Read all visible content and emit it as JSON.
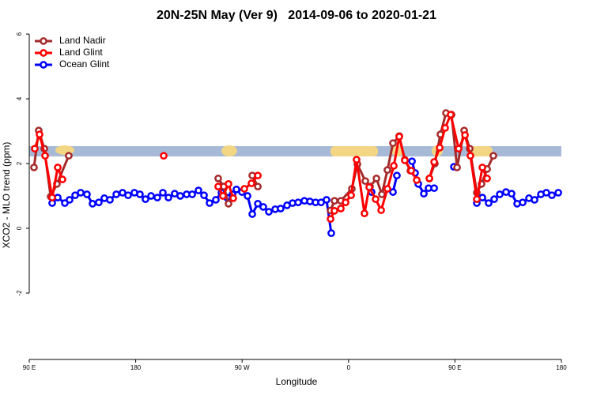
{
  "chart_data": {
    "type": "line",
    "title": "20N-25N May (Ver 9)   2014-09-06 to 2020-01-21",
    "x_label": "Longitude",
    "y_label": "XCO2 - MLO trend (ppm)",
    "xlim": [
      90,
      540
    ],
    "xticks": [
      {
        "value": 90,
        "label": "90 E"
      },
      180,
      {
        "value": 270,
        "label": "90 W"
      },
      {
        "value": 360,
        "label": "0"
      },
      {
        "value": 450,
        "label": "90 E"
      },
      {
        "value": 540,
        "label": "180"
      }
    ],
    "ylim": [
      -4.05,
      6.1
    ],
    "yticks": [
      -2,
      0,
      2,
      4,
      6
    ],
    "legend": "top-left",
    "series": [
      {
        "name": "Land Nadir",
        "color": "#a52a2a",
        "x": [
          94.0,
          98.0,
          102.7,
          108.1,
          113.4,
          123.4,
          null,
          249.8,
          254.5,
          258.5,
          null,
          278.6,
          283.3,
          null,
          344.8,
          348.1,
          353.5,
          362.8,
          367.5,
          374.2,
          378.2,
          383.6,
          388.2,
          392.9,
          397.6,
          402.9,
          407.6,
          412.3,
          null,
          428.4,
          433.0,
          437.7,
          442.4,
          447.1,
          451.8,
          457.8,
          462.5,
          468.5,
          472.5,
          477.2,
          482.5
        ],
        "values": [
          1.88,
          3.02,
          2.46,
          0.98,
          1.37,
          2.24,
          null,
          1.54,
          1.29,
          0.76,
          null,
          1.63,
          1.29,
          null,
          0.55,
          0.85,
          0.85,
          1.22,
          1.98,
          1.46,
          1.29,
          1.54,
          1.05,
          1.8,
          2.63,
          2.85,
          2.12,
          1.78,
          null,
          1.54,
          2.0,
          2.9,
          3.56,
          3.51,
          1.88,
          3.02,
          2.46,
          1.1,
          1.37,
          1.83,
          2.24
        ]
      },
      {
        "name": "Land Glint",
        "color": "#ff0000",
        "x": [
          94.7,
          98.7,
          103.4,
          109.4,
          114.1,
          118.1,
          null,
          203.7,
          null,
          249.8,
          253.8,
          258.5,
          262.5,
          null,
          271.9,
          277.9,
          283.3,
          null,
          344.8,
          348.1,
          353.5,
          357.5,
          362.2,
          366.8,
          373.5,
          377.5,
          382.9,
          387.6,
          392.9,
          398.3,
          402.9,
          407.6,
          413.0,
          417.7,
          null,
          428.4,
          432.4,
          437.1,
          441.7,
          446.4,
          453.1,
          458.5,
          463.1,
          468.5,
          473.2,
          477.2
        ],
        "values": [
          2.46,
          2.9,
          2.24,
          0.95,
          1.88,
          1.51,
          null,
          2.24,
          null,
          1.29,
          1.0,
          1.37,
          0.93,
          null,
          1.22,
          1.39,
          1.63,
          null,
          0.29,
          0.54,
          0.61,
          0.8,
          1.02,
          2.12,
          0.46,
          1.27,
          0.9,
          0.56,
          1.22,
          1.93,
          2.83,
          2.1,
          1.78,
          1.49,
          null,
          1.54,
          2.05,
          2.49,
          3.1,
          3.51,
          2.46,
          2.88,
          2.24,
          0.9,
          1.88,
          1.54
        ]
      },
      {
        "name": "Ocean Glint",
        "color": "#0000ff",
        "x": [
          109.4,
          114.1,
          120.1,
          124.1,
          128.8,
          133.5,
          138.8,
          143.5,
          148.8,
          153.5,
          158.2,
          163.6,
          168.9,
          173.6,
          178.9,
          183.6,
          188.3,
          193.0,
          198.3,
          203.0,
          207.7,
          213.0,
          217.7,
          223.1,
          227.8,
          233.1,
          237.8,
          242.5,
          247.8,
          252.5,
          257.2,
          261.9,
          265.2,
          269.9,
          274.6,
          278.6,
          283.3,
          287.9,
          292.6,
          298.0,
          302.6,
          308.0,
          312.7,
          317.4,
          322.7,
          327.4,
          332.1,
          336.8,
          341.4,
          345.4,
          null,
          379.5,
          null,
          397.6,
          400.9,
          null,
          413.7,
          416.3,
          419.0,
          423.7,
          427.7,
          432.4,
          null,
          449.1,
          null,
          468.5,
          473.2,
          478.5,
          483.2,
          487.9,
          493.2,
          497.9,
          502.6,
          507.3,
          512.6,
          517.3,
          522.7,
          527.3,
          532.0,
          537.4
        ],
        "values": [
          0.78,
          0.95,
          0.78,
          0.88,
          1.02,
          1.1,
          1.05,
          0.76,
          0.8,
          0.93,
          0.88,
          1.05,
          1.1,
          1.02,
          1.1,
          1.05,
          0.9,
          1.0,
          0.95,
          1.1,
          0.95,
          1.07,
          1.0,
          1.05,
          1.05,
          1.17,
          1.02,
          0.78,
          0.88,
          1.1,
          0.95,
          1.05,
          1.2,
          1.12,
          1.0,
          0.44,
          0.76,
          0.66,
          0.51,
          0.59,
          0.61,
          0.71,
          0.78,
          0.8,
          0.85,
          0.83,
          0.8,
          0.8,
          0.88,
          -0.15,
          null,
          1.12,
          null,
          1.12,
          1.63,
          null,
          2.07,
          1.71,
          1.37,
          1.07,
          1.24,
          1.24,
          null,
          1.9,
          null,
          0.78,
          0.95,
          0.78,
          0.9,
          1.05,
          1.12,
          1.07,
          0.76,
          0.8,
          0.93,
          0.88,
          1.05,
          1.1,
          1.02,
          1.1
        ]
      }
    ]
  }
}
